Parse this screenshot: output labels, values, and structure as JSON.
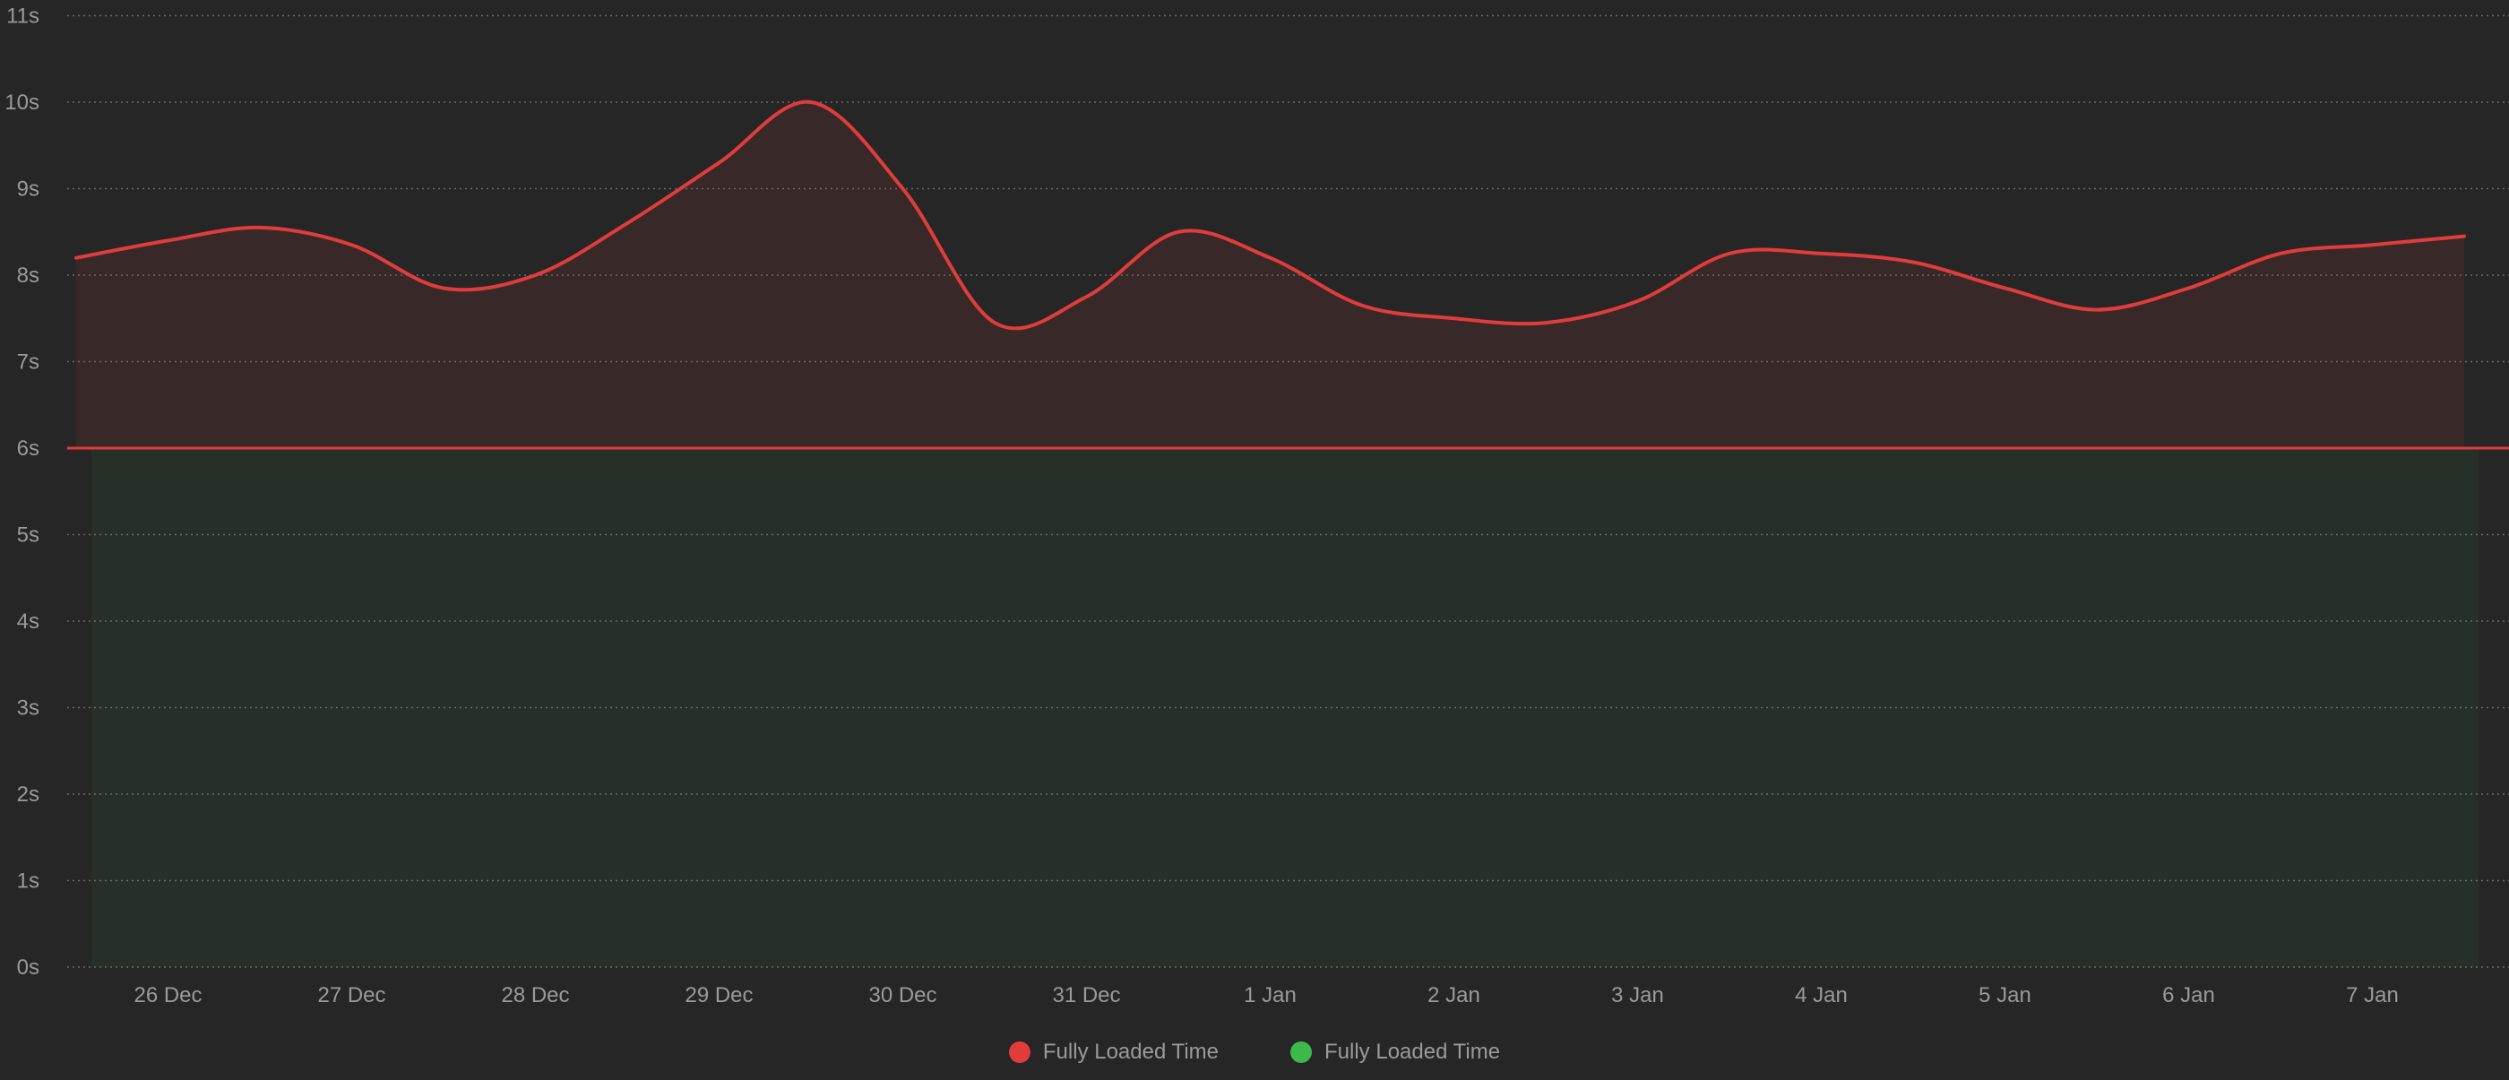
{
  "chart_data": {
    "type": "area",
    "title": "",
    "xlabel": "",
    "ylabel": "",
    "y_unit": "s",
    "ylim": [
      0,
      11
    ],
    "y_ticks": [
      "0s",
      "1s",
      "2s",
      "3s",
      "4s",
      "5s",
      "6s",
      "7s",
      "8s",
      "9s",
      "10s",
      "11s"
    ],
    "categories": [
      "26 Dec",
      "27 Dec",
      "28 Dec",
      "29 Dec",
      "30 Dec",
      "31 Dec",
      "1 Jan",
      "2 Jan",
      "3 Jan",
      "4 Jan",
      "5 Jan",
      "6 Jan",
      "7 Jan"
    ],
    "threshold": 6,
    "grid": true,
    "legend_position": "bottom-center",
    "series": [
      {
        "name": "Fully Loaded Time",
        "color": "#e03c3c",
        "points": [
          {
            "x": "25 Dec 12:00",
            "y": 8.2
          },
          {
            "x": "26 Dec 00:00",
            "y": 8.4
          },
          {
            "x": "26 Dec 12:00",
            "y": 8.55
          },
          {
            "x": "27 Dec 00:00",
            "y": 8.35
          },
          {
            "x": "27 Dec 12:00",
            "y": 7.85
          },
          {
            "x": "28 Dec 00:00",
            "y": 8.0
          },
          {
            "x": "28 Dec 12:00",
            "y": 8.6
          },
          {
            "x": "29 Dec 00:00",
            "y": 9.3
          },
          {
            "x": "29 Dec 12:00",
            "y": 10.0
          },
          {
            "x": "30 Dec 00:00",
            "y": 9.0
          },
          {
            "x": "30 Dec 12:00",
            "y": 7.45
          },
          {
            "x": "31 Dec 00:00",
            "y": 7.75
          },
          {
            "x": "31 Dec 12:00",
            "y": 8.5
          },
          {
            "x": "1 Jan 00:00",
            "y": 8.2
          },
          {
            "x": "1 Jan 12:00",
            "y": 7.65
          },
          {
            "x": "2 Jan 00:00",
            "y": 7.5
          },
          {
            "x": "2 Jan 12:00",
            "y": 7.45
          },
          {
            "x": "3 Jan 00:00",
            "y": 7.7
          },
          {
            "x": "3 Jan 12:00",
            "y": 8.25
          },
          {
            "x": "4 Jan 00:00",
            "y": 8.25
          },
          {
            "x": "4 Jan 12:00",
            "y": 8.15
          },
          {
            "x": "5 Jan 00:00",
            "y": 7.85
          },
          {
            "x": "5 Jan 12:00",
            "y": 7.6
          },
          {
            "x": "6 Jan 00:00",
            "y": 7.85
          },
          {
            "x": "6 Jan 12:00",
            "y": 8.25
          },
          {
            "x": "7 Jan 00:00",
            "y": 8.35
          },
          {
            "x": "7 Jan 12:00",
            "y": 8.45
          }
        ]
      },
      {
        "name": "Fully Loaded Time",
        "color": "#3cb94a",
        "constant": 6
      }
    ]
  },
  "legend": {
    "items": [
      {
        "label": "Fully Loaded Time",
        "color": "#e03c3c"
      },
      {
        "label": "Fully Loaded Time",
        "color": "#3cb94a"
      }
    ]
  }
}
